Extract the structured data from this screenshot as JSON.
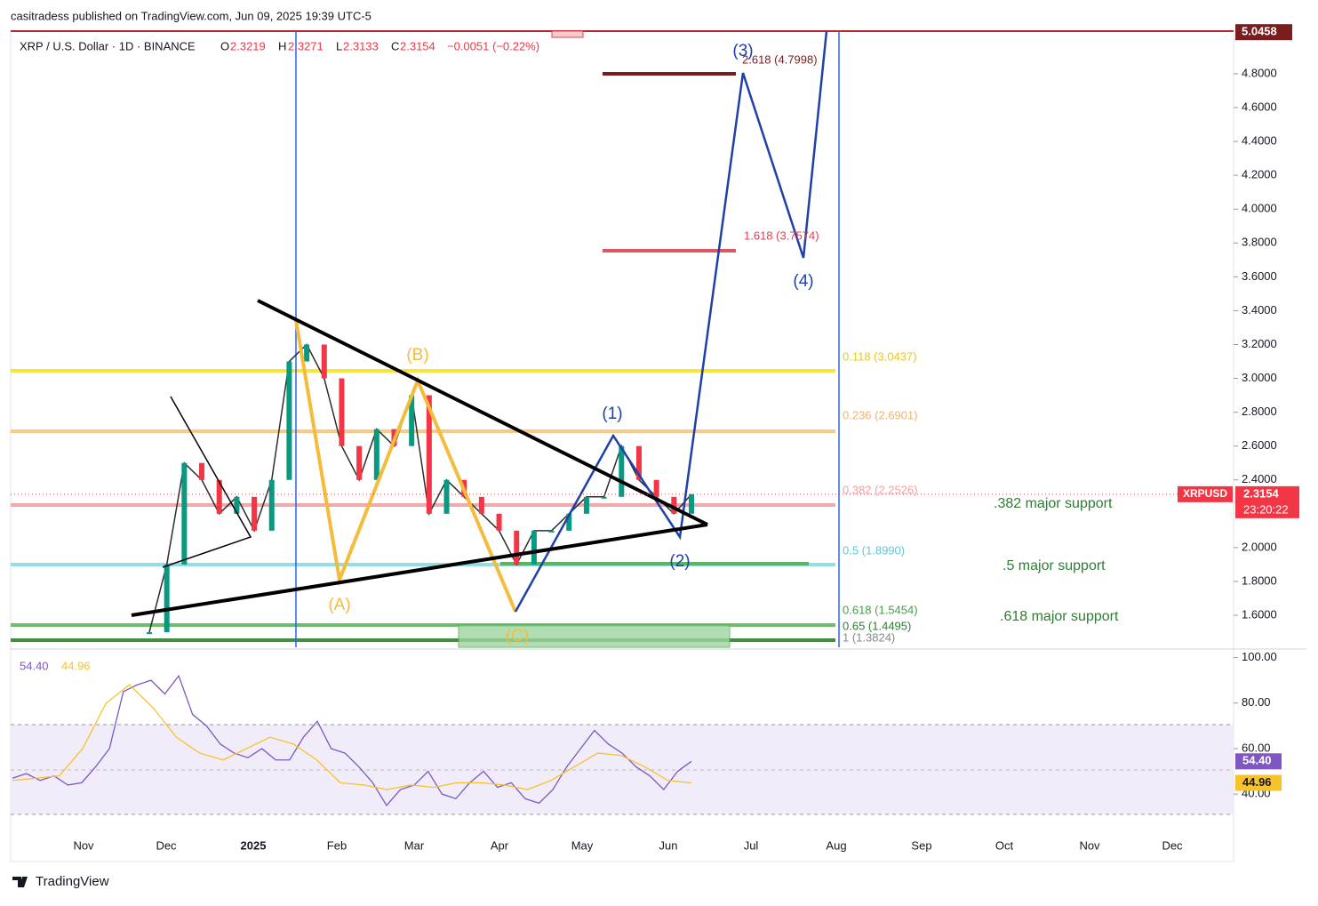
{
  "header": {
    "publisher": "casitradess published on TradingView.com, Jun 09, 2025 19:39 UTC-5",
    "symbol": "XRP / U.S. Dollar · 1D · BINANCE",
    "open_label": "O",
    "open": 2.3219,
    "high_label": "H",
    "high": 2.3271,
    "low_label": "L",
    "low": 2.3133,
    "close_label": "C",
    "close": 2.3154,
    "change": "−0.0051 (−0.22%)"
  },
  "chart_data": {
    "type": "line",
    "ylim": [
      1.411,
      5.052
    ],
    "yticks": [
      {
        "value": 4.8,
        "label": "4.8000"
      },
      {
        "value": 4.6,
        "label": "4.6000"
      },
      {
        "value": 4.4,
        "label": "4.4000"
      },
      {
        "value": 4.2,
        "label": "4.2000"
      },
      {
        "value": 4.0,
        "label": "4.0000"
      },
      {
        "value": 3.8,
        "label": "3.8000"
      },
      {
        "value": 3.6,
        "label": "3.6000"
      },
      {
        "value": 3.4,
        "label": "3.4000"
      },
      {
        "value": 3.2,
        "label": "3.2000"
      },
      {
        "value": 3.0,
        "label": "3.0000"
      },
      {
        "value": 2.8,
        "label": "2.8000"
      },
      {
        "value": 2.6,
        "label": "2.6000"
      },
      {
        "value": 2.4,
        "label": "2.4000"
      },
      {
        "value": 2.0,
        "label": "2.0000"
      },
      {
        "value": 1.8,
        "label": "1.8000"
      },
      {
        "value": 1.6,
        "label": "1.6000"
      }
    ],
    "high_marker": {
      "value": 5.0458,
      "label": "5.0458"
    },
    "series": [
      {
        "name": "XRPUSD",
        "color": "#2d2d2d",
        "values": [
          1.5,
          1.9,
          2.5,
          2.4,
          2.2,
          2.3,
          2.1,
          2.4,
          3.1,
          3.2,
          3.0,
          2.6,
          2.4,
          2.7,
          2.6,
          2.9,
          2.2,
          2.4,
          2.3,
          2.2,
          2.1,
          1.9,
          2.1,
          2.1,
          2.2,
          2.3,
          2.3,
          2.6,
          2.4,
          2.3,
          2.2,
          2.3154
        ]
      }
    ],
    "last_price": {
      "value": 2.3154,
      "label": "2.3154",
      "countdown": "23:20:22"
    },
    "x_labels": [
      "Nov",
      "Dec",
      "2025",
      "Feb",
      "Mar",
      "Apr",
      "May",
      "Jun",
      "Jul",
      "Aug",
      "Sep",
      "Oct",
      "Nov",
      "Dec"
    ],
    "fib_labels": [
      "2.618 (4.7998)",
      "1.618 (3.7574)",
      "0.118 (3.0437)",
      "0.236 (2.6901)",
      "0.382 (2.2526)",
      "0.5 (1.8990)",
      "0.618 (1.5454)",
      "0.65 (1.4495)",
      "1 (1.3824)"
    ],
    "wave_labels": [
      "(3)",
      "(4)",
      "(1)",
      "(2)",
      "(B)",
      "(A)",
      "(C)"
    ],
    "annotations": [
      ".382 major support",
      ".5 major support",
      ".618 major support"
    ],
    "rsi": {
      "ylim": [
        28,
        101
      ],
      "yticks": [
        {
          "value": 100,
          "label": "100.00"
        },
        {
          "value": 80,
          "label": "80.00"
        },
        {
          "value": 60,
          "label": "60.00"
        },
        {
          "value": 40,
          "label": "40.00"
        }
      ],
      "series": [
        {
          "name": "RSI",
          "color": "#7e57c2",
          "values": [
            47,
            49,
            46,
            48,
            44,
            45,
            52,
            60,
            85,
            88,
            90,
            84,
            92,
            75,
            70,
            62,
            58,
            56,
            60,
            55,
            55,
            65,
            72,
            60,
            58,
            52,
            45,
            35,
            42,
            44,
            50,
            40,
            38,
            45,
            50,
            43,
            45,
            38,
            36,
            42,
            52,
            60,
            68,
            62,
            58,
            52,
            48,
            42,
            50,
            54.4
          ],
          "value_labels": [
            "54.40"
          ]
        },
        {
          "name": "RSI MA",
          "color": "#f7c22b",
          "values": [
            46,
            47,
            48,
            60,
            80,
            88,
            78,
            65,
            58,
            55,
            60,
            65,
            62,
            55,
            45,
            44,
            42,
            44,
            43,
            45,
            45,
            44,
            42,
            46,
            52,
            58,
            57,
            52,
            46,
            44.96
          ],
          "value_labels": [
            "44.96"
          ]
        }
      ]
    },
    "footer": "TradingView"
  }
}
